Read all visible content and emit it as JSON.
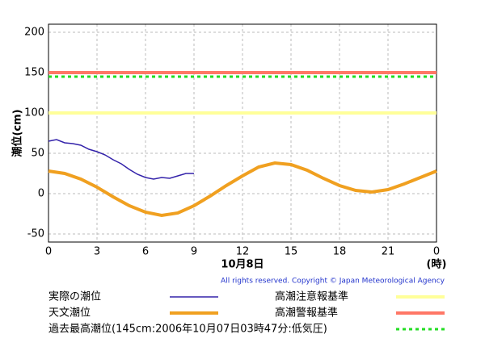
{
  "chart_data": {
    "type": "line",
    "ylabel": "潮位(cm)",
    "xlabel": "10月8日",
    "xunit": "(時)",
    "copyright": "All rights reserved. Copyright © Japan Meteorological Agency",
    "xlim": [
      0,
      24
    ],
    "ylim": [
      -60,
      210
    ],
    "xticks": [
      0,
      3,
      6,
      9,
      12,
      15,
      18,
      21,
      {
        "value": 24,
        "label": "0"
      }
    ],
    "yticks": [
      -50,
      0,
      50,
      100,
      150,
      200
    ],
    "grid": true,
    "series": [
      {
        "name": "実際の潮位",
        "color": "#3322aa",
        "x": [
          0,
          0.5,
          1,
          1.5,
          2,
          2.5,
          3,
          3.5,
          4,
          4.5,
          5,
          5.5,
          6,
          6.5,
          7,
          7.5,
          8,
          8.5,
          9
        ],
        "values": [
          65,
          67,
          63,
          62,
          60,
          55,
          52,
          48,
          42,
          37,
          30,
          24,
          20,
          18,
          20,
          19,
          22,
          25,
          25
        ]
      },
      {
        "name": "天文潮位",
        "color": "#f0a020",
        "x": [
          0,
          1,
          2,
          3,
          4,
          5,
          6,
          7,
          8,
          9,
          10,
          11,
          12,
          13,
          14,
          15,
          16,
          17,
          18,
          19,
          20,
          21,
          22,
          23,
          24
        ],
        "values": [
          28,
          25,
          18,
          8,
          -4,
          -15,
          -23,
          -27,
          -24,
          -15,
          -3,
          10,
          22,
          33,
          38,
          36,
          29,
          19,
          10,
          4,
          2,
          5,
          12,
          20,
          28
        ]
      }
    ],
    "lines": [
      {
        "name": "高潮注意報基準",
        "color": "#ffff99",
        "value": 100,
        "dashed": false
      },
      {
        "name": "高潮警報基準",
        "color": "#ff7766",
        "value": 150,
        "dashed": false
      },
      {
        "name": "過去最高潮位(145cm:2006年10月07日03時47分:低気圧)",
        "color": "#22dd22",
        "value": 145,
        "dashed": true
      }
    ]
  }
}
